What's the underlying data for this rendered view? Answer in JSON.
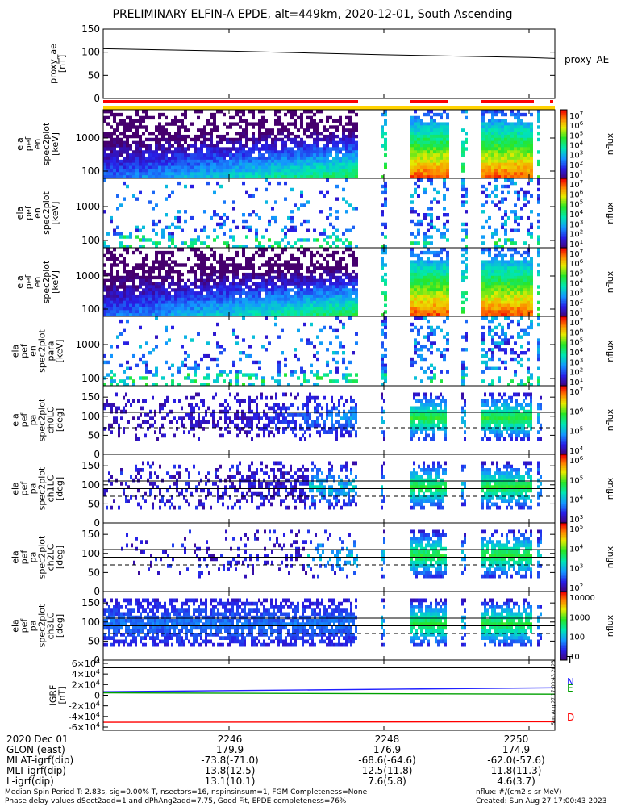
{
  "title": "PRELIMINARY ELFIN-A EPDE, alt=449km, 2020-12-01, South Ascending",
  "x_ticks": [
    "2246",
    "2248",
    "2250"
  ],
  "panels": [
    {
      "id": "proxy",
      "ylabel": [
        "proxy_ae",
        "[nT]"
      ],
      "yticks": [
        "150",
        "100",
        "50",
        "0"
      ],
      "right_label": "proxy_AE"
    },
    {
      "id": "en1",
      "ylabel": [
        "ela",
        "pef",
        "en",
        "spec2plot",
        "[keV]"
      ],
      "yticks": [
        "1000",
        "100"
      ],
      "cbar_ticks": [
        "10^7",
        "10^6",
        "10^5",
        "10^4",
        "10^3",
        "10^2",
        "10^1"
      ],
      "cbar_label": "nflux"
    },
    {
      "id": "en2",
      "ylabel": [
        "ela",
        "pef",
        "en",
        "spec2plot",
        "[keV]"
      ],
      "yticks": [
        "1000",
        "100"
      ],
      "cbar_ticks": [
        "10^7",
        "10^6",
        "10^5",
        "10^4",
        "10^3",
        "10^2",
        "10^1"
      ],
      "cbar_label": "nflux"
    },
    {
      "id": "en3",
      "ylabel": [
        "ela",
        "pef",
        "en",
        "spec2plot",
        "[keV]"
      ],
      "yticks": [
        "1000",
        "100"
      ],
      "cbar_ticks": [
        "10^7",
        "10^6",
        "10^5",
        "10^4",
        "10^3",
        "10^2",
        "10^1"
      ],
      "cbar_label": "nflux"
    },
    {
      "id": "en4",
      "ylabel": [
        "ela",
        "pef",
        "en",
        "spec2plot",
        "para",
        "[keV]"
      ],
      "yticks": [
        "1000",
        "100"
      ],
      "cbar_ticks": [
        "10^7",
        "10^6",
        "10^5",
        "10^4",
        "10^3",
        "10^2",
        "10^1"
      ],
      "cbar_label": "nflux"
    },
    {
      "id": "pa0",
      "ylabel": [
        "ela",
        "pef",
        "pa",
        "spec2plot",
        "ch0LC",
        "[deg]"
      ],
      "yticks": [
        "150",
        "100",
        "50",
        "0"
      ],
      "cbar_ticks": [
        "10^7",
        "10^6",
        "10^5",
        "10^4"
      ],
      "cbar_label": "nflux"
    },
    {
      "id": "pa1",
      "ylabel": [
        "ela",
        "pef",
        "pa",
        "spec2plot",
        "ch1LC",
        "[deg]"
      ],
      "yticks": [
        "150",
        "100",
        "50",
        "0"
      ],
      "cbar_ticks": [
        "10^6",
        "10^5",
        "10^4",
        "10^3"
      ],
      "cbar_label": "nflux"
    },
    {
      "id": "pa2",
      "ylabel": [
        "ela",
        "pef",
        "pa",
        "spec2plot",
        "ch2LC",
        "[deg]"
      ],
      "yticks": [
        "150",
        "100",
        "50",
        "0"
      ],
      "cbar_ticks": [
        "10^5",
        "10^4",
        "10^3",
        "10^2"
      ],
      "cbar_label": "nflux"
    },
    {
      "id": "pa3",
      "ylabel": [
        "ela",
        "pef",
        "pa",
        "spec2plot",
        "ch3LC",
        "[deg]"
      ],
      "yticks": [
        "150",
        "100",
        "50",
        "0"
      ],
      "cbar_ticks": [
        "10000",
        "1000",
        "100",
        "10"
      ],
      "cbar_label": "nflux"
    },
    {
      "id": "igrf",
      "ylabel": [
        "IGRF",
        "[nT]"
      ],
      "yticks": [
        "6×10^4",
        "4×10^4",
        "2×10^4",
        "0",
        "-2×10^4",
        "-4×10^4",
        "-6×10^4"
      ],
      "legend": [
        "T",
        "N",
        "E",
        "D"
      ]
    }
  ],
  "chart_data": {
    "type": "heatmap",
    "title": "PRELIMINARY ELFIN-A EPDE, alt=449km, 2020-12-01, South Ascending",
    "x_ticks": [
      "2246",
      "2248",
      "2250"
    ],
    "proxy_ae": {
      "label": "proxy_AE",
      "ylim": [
        0,
        150
      ],
      "x": [
        "start",
        "2246",
        "2248",
        "2250",
        "end"
      ],
      "values": [
        97,
        92,
        84,
        78,
        76
      ]
    },
    "igrf_components": {
      "ylim": [
        -60000,
        60000
      ],
      "series": [
        {
          "name": "T",
          "color": "#000000",
          "values": [
            52000,
            52000
          ]
        },
        {
          "name": "N",
          "color": "#2020ff",
          "values": [
            6500,
            14000
          ]
        },
        {
          "name": "E",
          "color": "#00a000",
          "values": [
            4500,
            2000
          ]
        },
        {
          "name": "D",
          "color": "#ff0000",
          "values": [
            -51000,
            -50000
          ]
        }
      ]
    },
    "energy_ylim_keV": [
      50,
      6000
    ],
    "pitch_angle_ylim_deg": [
      0,
      180
    ],
    "colorbar_label": "nflux"
  },
  "colors": {
    "phase_bar_red": "#ff0000",
    "phase_bar_yellow": "#ffd200"
  },
  "footer": {
    "rows": [
      {
        "label": "2020 Dec 01",
        "v1": "2246",
        "v2": "2248",
        "v3": "2250"
      },
      {
        "label": "GLON (east)",
        "v1": "179.9",
        "v2": "176.9",
        "v3": "174.9"
      },
      {
        "label": "MLAT-igrf(dip)",
        "v1": "-73.8(-71.0)",
        "v2": "-68.6(-64.6)",
        "v3": "-62.0(-57.6)"
      },
      {
        "label": "MLT-igrf(dip)",
        "v1": "13.8(12.5)",
        "v2": "12.5(11.8)",
        "v3": "11.8(11.3)"
      },
      {
        "label": "L-igrf(dip)",
        "v1": "13.1(10.1)",
        "v2": "7.6(5.8)",
        "v3": "4.6(3.7)"
      }
    ],
    "note_line1": "Median Spin Period T: 2.83s, sig=0.00% T, nsectors=16, nspinsinsum=1, FGM Completeness=None",
    "note_line2": "Phase delay values dSect2add=1 and dPhAng2add=7.75, Good Fit, EPDE completeness=76%",
    "units": "nflux: #/(cm2 s sr MeV)",
    "created": "Created: Sun Aug 27 17:00:43 2023",
    "side_stamp": "Sun Aug 27 17:00:43 2023"
  }
}
